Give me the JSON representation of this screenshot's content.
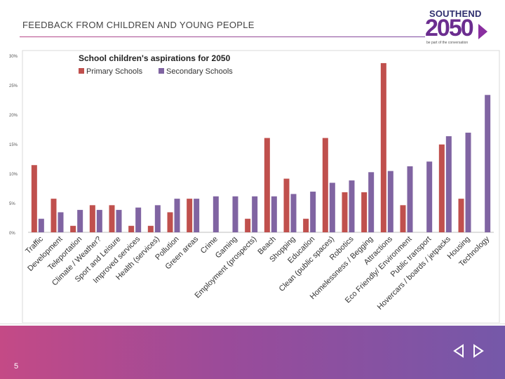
{
  "header": {
    "title": "FEEDBACK FROM CHILDREN AND YOUNG PEOPLE"
  },
  "logo": {
    "top": "SOUTHEND",
    "number": "2050",
    "sub": "be part of the conversation"
  },
  "footer": {
    "page_number": "5"
  },
  "icons": {
    "prev": "prev-slide-icon",
    "next": "next-slide-icon"
  },
  "colors": {
    "primary": "#c0504d",
    "secondary": "#8064a2",
    "footer_start": "#c44a86",
    "footer_end": "#7558a9"
  },
  "chart_data": {
    "type": "bar",
    "title": "School children's aspirations for 2050",
    "xlabel": "",
    "ylabel": "",
    "ylim": [
      0,
      30
    ],
    "yticks": [
      "0%",
      "5%",
      "10%",
      "15%",
      "20%",
      "25%",
      "30%"
    ],
    "legend_position": "top",
    "categories": [
      "Traffic",
      "Development",
      "Teleportation",
      "Climate / Weather?",
      "Sport and Leisure",
      "Improved services",
      "Health (services)",
      "Pollution",
      "Green areas",
      "Crime",
      "Gaming",
      "Employment (prospects)",
      "Beach",
      "Shopping",
      "Education",
      "Clean (public spaces)",
      "Robotics",
      "Homelessness / Begging",
      "Attractions",
      "Eco Friendly/ Environment",
      "Public transport",
      "Hovercars / boards / jetpacks",
      "Housing",
      "Technology"
    ],
    "series": [
      {
        "name": "Primary Schools",
        "values": [
          11.4,
          5.7,
          1.1,
          4.6,
          4.6,
          1.1,
          1.1,
          3.4,
          5.7,
          0,
          0,
          2.3,
          16.0,
          9.1,
          2.3,
          16.0,
          6.8,
          6.8,
          28.7,
          4.6,
          0,
          14.9,
          5.7,
          0
        ]
      },
      {
        "name": "Secondary Schools",
        "values": [
          2.3,
          3.4,
          3.8,
          3.8,
          3.8,
          4.2,
          4.6,
          5.7,
          5.7,
          6.1,
          6.1,
          6.1,
          6.1,
          6.5,
          6.9,
          8.4,
          8.8,
          10.2,
          10.4,
          11.2,
          12.0,
          16.3,
          16.9,
          23.3
        ]
      }
    ]
  }
}
